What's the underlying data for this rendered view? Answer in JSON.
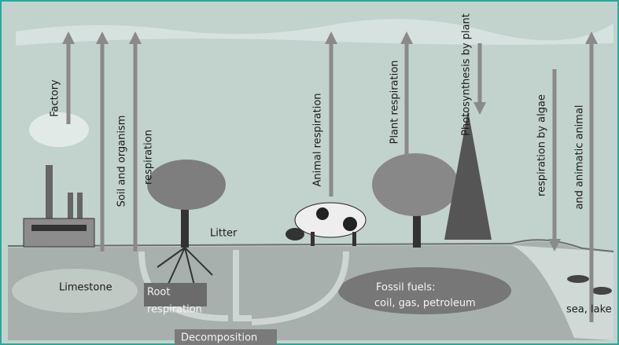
{
  "labels": {
    "factory": "Factory",
    "soil_and_organism": "Soil and organism",
    "respiration": "respiration",
    "animal_respiration": "Animal respiration",
    "plant_respiration": "Plant respiration",
    "photosynthesis": "Photosynthesis by plant",
    "algae_respiration": "respiration by algae",
    "animatic_animal": "and animatic animal",
    "litter": "Litter",
    "limestone": "Limestone",
    "root_respiration": [
      "Root",
      "respiration"
    ],
    "fossil_fuels": [
      "Fossil fuels:",
      "coil, gas, petroleum"
    ],
    "sea_lake": "sea, lake",
    "decomposition": "Decomposition"
  }
}
